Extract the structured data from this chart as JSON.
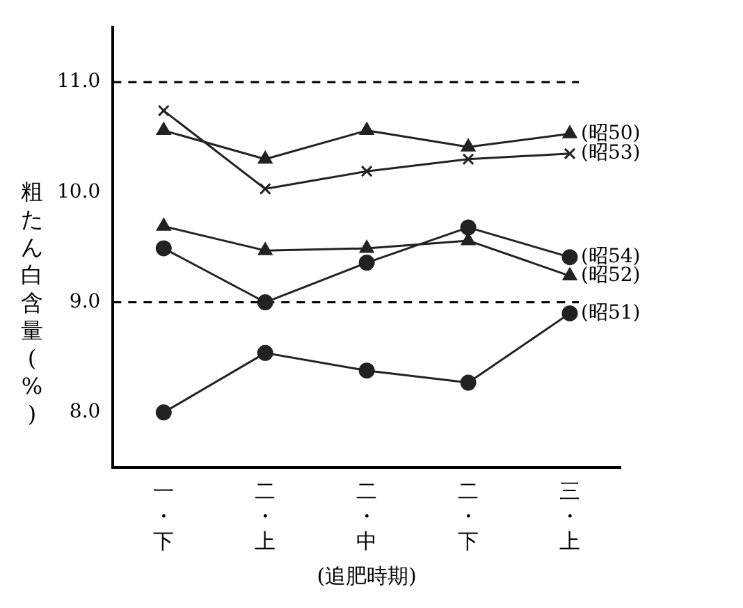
{
  "chart_data": {
    "type": "line",
    "ylabel": "粗たん白含量(%)",
    "xlabel": "(追肥時期)",
    "categories": [
      "一・下",
      "二・上",
      "二・中",
      "二・下",
      "三・上"
    ],
    "ylim": [
      7.5,
      11.5
    ],
    "yticks": [
      {
        "value": 8,
        "label": "8.0"
      },
      {
        "value": 9,
        "label": "9.0"
      },
      {
        "value": 10,
        "label": "10.0"
      },
      {
        "value": 11,
        "label": "11.0"
      }
    ],
    "grid": false,
    "legend": false,
    "line_style": "solid",
    "ref_lines": [
      {
        "axis": "y",
        "value": 11,
        "line_style": "dashed",
        "color": "#000000"
      },
      {
        "axis": "y",
        "value": 9,
        "line_style": "dashed",
        "color": "#000000"
      }
    ],
    "series": [
      {
        "name": "(昭50)",
        "color": "#222222",
        "marker": "triangle",
        "values": [
          10.56,
          10.3,
          10.56,
          10.41,
          10.53
        ]
      },
      {
        "name": "(昭53)",
        "color": "#222222",
        "marker": "cross",
        "values": [
          10.74,
          10.03,
          10.19,
          10.3,
          10.35
        ]
      },
      {
        "name": "(昭54)",
        "color": "#222222",
        "marker": "circle",
        "values": [
          9.49,
          9.0,
          9.36,
          9.68,
          9.41
        ]
      },
      {
        "name": "(昭52)",
        "color": "#222222",
        "marker": "triangle",
        "values": [
          9.69,
          9.47,
          9.49,
          9.56,
          9.24
        ]
      },
      {
        "name": "(昭51)",
        "color": "#222222",
        "marker": "circle",
        "values": [
          8.0,
          8.54,
          8.38,
          8.27,
          8.9
        ]
      }
    ]
  }
}
